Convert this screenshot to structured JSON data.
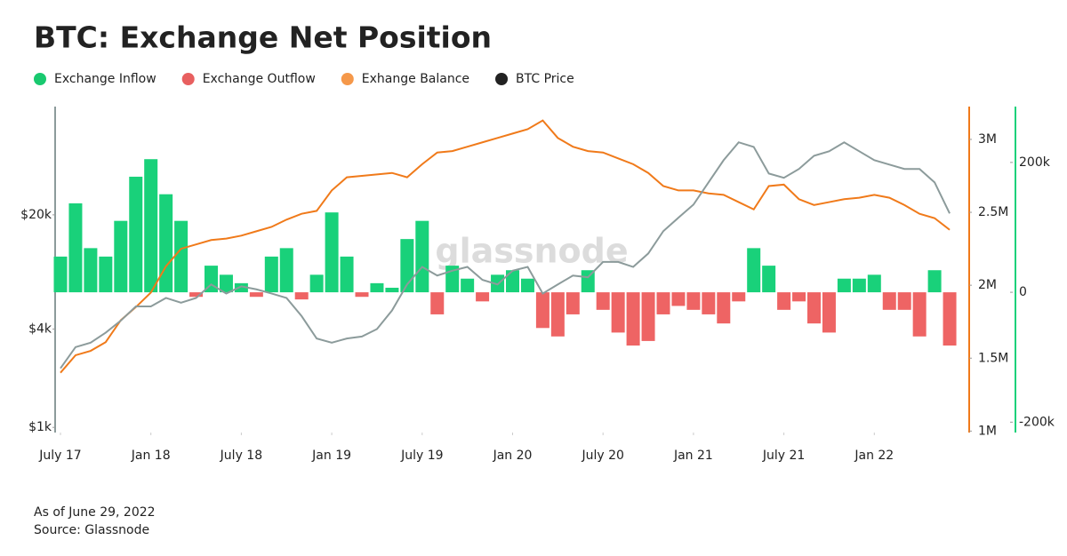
{
  "chart_data": {
    "type": "combo",
    "title": "BTC: Exchange Net Position",
    "watermark": "glassnode",
    "notes": [
      "As of June 29, 2022",
      "Source: Glassnode"
    ],
    "x": [
      "2017-07",
      "2017-08",
      "2017-09",
      "2017-10",
      "2017-11",
      "2017-12",
      "2018-01",
      "2018-02",
      "2018-03",
      "2018-04",
      "2018-05",
      "2018-06",
      "2018-07",
      "2018-08",
      "2018-09",
      "2018-10",
      "2018-11",
      "2018-12",
      "2019-01",
      "2019-02",
      "2019-03",
      "2019-04",
      "2019-05",
      "2019-06",
      "2019-07",
      "2019-08",
      "2019-09",
      "2019-10",
      "2019-11",
      "2019-12",
      "2020-01",
      "2020-02",
      "2020-03",
      "2020-04",
      "2020-05",
      "2020-06",
      "2020-07",
      "2020-08",
      "2020-09",
      "2020-10",
      "2020-11",
      "2020-12",
      "2021-01",
      "2021-02",
      "2021-03",
      "2021-04",
      "2021-05",
      "2021-06",
      "2021-07",
      "2021-08",
      "2021-09",
      "2021-10",
      "2021-11",
      "2021-12",
      "2022-01",
      "2022-02",
      "2022-03",
      "2022-04",
      "2022-05",
      "2022-06"
    ],
    "xticks": [
      {
        "value": "2017-07",
        "label": "July 17"
      },
      {
        "value": "2018-01",
        "label": "Jan 18"
      },
      {
        "value": "2018-07",
        "label": "July 18"
      },
      {
        "value": "2019-01",
        "label": "Jan 19"
      },
      {
        "value": "2019-07",
        "label": "July 19"
      },
      {
        "value": "2020-01",
        "label": "Jan 20"
      },
      {
        "value": "2020-07",
        "label": "July 20"
      },
      {
        "value": "2021-01",
        "label": "Jan 21"
      },
      {
        "value": "2021-07",
        "label": "July 21"
      },
      {
        "value": "2022-01",
        "label": "Jan 22"
      }
    ],
    "ylim": [
      930,
      92000
    ],
    "ylog": true,
    "yticks": [
      {
        "value": 1000,
        "label": "$1k"
      },
      {
        "value": 4000,
        "label": "$4k"
      },
      {
        "value": 20000,
        "label": "$20k"
      }
    ],
    "y2lim": [
      990000,
      3225000
    ],
    "y2ticks": [
      {
        "value": 1000000,
        "label": "1M"
      },
      {
        "value": 1500000,
        "label": "1.5M"
      },
      {
        "value": 2000000,
        "label": "2M"
      },
      {
        "value": 2500000,
        "label": "2.5M"
      },
      {
        "value": 3000000,
        "label": "3M"
      }
    ],
    "y3lim": [
      -216000,
      286000
    ],
    "y3ticks": [
      {
        "value": 200000,
        "label": "200k"
      },
      0,
      {
        "value": -200000,
        "label": "-200k"
      }
    ],
    "series": [
      {
        "name": "Exchange Inflow",
        "type": "bar",
        "axis": "y3",
        "color": "#19d17a",
        "legend_color": "#19c96f",
        "values": [
          55000,
          137000,
          68000,
          55000,
          110000,
          178000,
          205000,
          151000,
          110000,
          null,
          41000,
          27000,
          14000,
          null,
          55000,
          68000,
          null,
          27000,
          123000,
          55000,
          null,
          14000,
          7000,
          82000,
          110000,
          null,
          41000,
          21000,
          null,
          27000,
          34000,
          21000,
          null,
          null,
          null,
          34000,
          null,
          null,
          null,
          null,
          null,
          null,
          null,
          null,
          null,
          null,
          68000,
          41000,
          null,
          null,
          null,
          null,
          21000,
          21000,
          27000,
          null,
          null,
          null,
          34000,
          null
        ]
      },
      {
        "name": "Exchange Outflow",
        "type": "bar",
        "axis": "y3",
        "color": "#ee6464",
        "legend_color": "#e85f5f",
        "values": [
          null,
          null,
          null,
          null,
          null,
          null,
          null,
          null,
          null,
          -7000,
          null,
          null,
          null,
          -7000,
          null,
          null,
          -11000,
          null,
          null,
          null,
          -7000,
          null,
          null,
          null,
          null,
          -34000,
          null,
          null,
          -14000,
          null,
          null,
          null,
          -55000,
          -68000,
          -34000,
          null,
          -27000,
          -62000,
          -82000,
          -75000,
          -34000,
          -21000,
          -27000,
          -34000,
          -48000,
          -14000,
          null,
          null,
          -27000,
          -14000,
          -48000,
          -62000,
          null,
          null,
          null,
          -27000,
          -27000,
          -68000,
          null,
          -82000
        ]
      },
      {
        "name": "Exhange Balance",
        "type": "line",
        "axis": "y2",
        "color": "#f07a1a",
        "legend_color": "#f5984a",
        "values": [
          1400000,
          1520000,
          1550000,
          1610000,
          1760000,
          1850000,
          1950000,
          2130000,
          2250000,
          2280000,
          2310000,
          2320000,
          2340000,
          2370000,
          2400000,
          2450000,
          2490000,
          2510000,
          2650000,
          2740000,
          2750000,
          2760000,
          2770000,
          2740000,
          2830000,
          2910000,
          2920000,
          2950000,
          2980000,
          3010000,
          3040000,
          3070000,
          3130000,
          3010000,
          2950000,
          2920000,
          2910000,
          2870000,
          2830000,
          2770000,
          2680000,
          2650000,
          2650000,
          2630000,
          2620000,
          2570000,
          2520000,
          2680000,
          2690000,
          2590000,
          2550000,
          2570000,
          2590000,
          2600000,
          2620000,
          2600000,
          2550000,
          2490000,
          2460000,
          2380000
        ]
      },
      {
        "name": "BTC Price",
        "type": "line",
        "axis": "y",
        "color": "#8c9b9b",
        "legend_color": "#222222",
        "values": [
          2300,
          3100,
          3300,
          3800,
          4500,
          5500,
          5500,
          6200,
          5800,
          6200,
          7500,
          6600,
          7300,
          7000,
          6600,
          6200,
          4800,
          3500,
          3300,
          3500,
          3600,
          4000,
          5200,
          7500,
          9600,
          8500,
          9100,
          9600,
          8000,
          7500,
          9100,
          9600,
          6600,
          7500,
          8500,
          8300,
          10300,
          10300,
          9600,
          11600,
          15900,
          19200,
          23100,
          31600,
          43200,
          55600,
          52100,
          35800,
          33700,
          38200,
          46000,
          49000,
          55600,
          49000,
          43200,
          40600,
          38200,
          38200,
          31600,
          20400
        ]
      }
    ]
  }
}
